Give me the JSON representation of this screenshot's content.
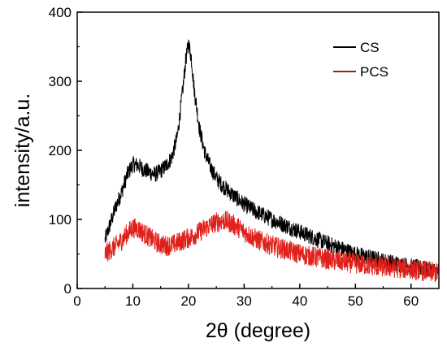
{
  "chart_data": {
    "type": "line",
    "title": "",
    "xlabel": "2θ (degree)",
    "ylabel": "intensity/a.u.",
    "xlim": [
      0,
      65
    ],
    "ylim": [
      0,
      400
    ],
    "x_ticks": [
      "0",
      "10",
      "20",
      "30",
      "40",
      "50",
      "60"
    ],
    "y_ticks": [
      "0",
      "100",
      "200",
      "300",
      "400"
    ],
    "grid": false,
    "legend_position": "top-right",
    "series": [
      {
        "name": "CS",
        "color": "#000000",
        "x": [
          5,
          6,
          7,
          8,
          9,
          10,
          11,
          12,
          13,
          14,
          15,
          16,
          17,
          18,
          19,
          19.5,
          20,
          20.5,
          21,
          22,
          23,
          24,
          25,
          26,
          28,
          30,
          32,
          35,
          40,
          45,
          50,
          55,
          60,
          65
        ],
        "y": [
          70,
          95,
          120,
          140,
          165,
          180,
          178,
          172,
          168,
          165,
          170,
          178,
          190,
          220,
          290,
          330,
          355,
          335,
          290,
          230,
          195,
          175,
          160,
          150,
          135,
          122,
          112,
          100,
          82,
          65,
          50,
          40,
          32,
          25
        ]
      },
      {
        "name": "PCS",
        "color": "#e0201a",
        "x": [
          5,
          6,
          7,
          8,
          9,
          10,
          11,
          12,
          13,
          14,
          15,
          16,
          17,
          18,
          19,
          20,
          21,
          22,
          23,
          24,
          25,
          26,
          27,
          28,
          29,
          30,
          32,
          35,
          40,
          45,
          50,
          55,
          60,
          65
        ],
        "y": [
          50,
          56,
          62,
          70,
          80,
          88,
          86,
          80,
          74,
          68,
          64,
          62,
          63,
          66,
          70,
          73,
          77,
          82,
          87,
          92,
          96,
          98,
          97,
          93,
          88,
          82,
          72,
          62,
          50,
          42,
          36,
          31,
          28,
          22
        ]
      }
    ]
  }
}
